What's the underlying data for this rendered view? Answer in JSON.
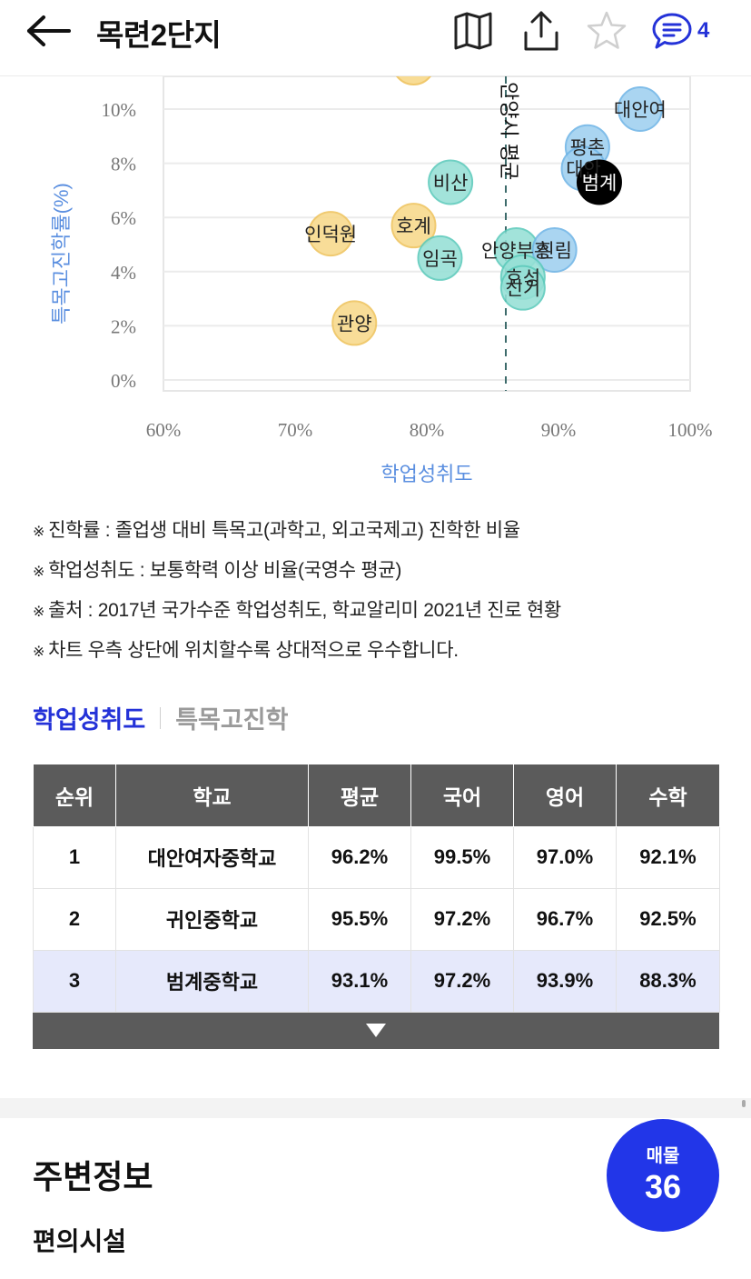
{
  "header": {
    "title": "목련2단지",
    "comment_count": "4",
    "icons": [
      "back-arrow-icon",
      "map-icon",
      "share-icon",
      "star-icon",
      "chat-icon"
    ]
  },
  "chart_data": {
    "type": "scatter",
    "xlabel": "학업성취도",
    "ylabel": "특목고진학률(%)",
    "x_ticks": [
      "60%",
      "70%",
      "80%",
      "90%",
      "100%"
    ],
    "y_ticks": [
      "0%",
      "2%",
      "4%",
      "6%",
      "8%",
      "10%"
    ],
    "xlim": [
      60,
      100
    ],
    "ylim": [
      0,
      10.5
    ],
    "reference_line": {
      "x": 86,
      "label": "안양시 평균",
      "style": "dashed"
    },
    "points": [
      {
        "name": "대안여",
        "x": 96.2,
        "y": 10.0,
        "color": "#9fd0f0"
      },
      {
        "name": "평촌",
        "x": 92.2,
        "y": 8.6,
        "color": "#9fd0f0"
      },
      {
        "name": "대안",
        "x": 91.9,
        "y": 7.8,
        "color": "#9fd0f0"
      },
      {
        "name": "범계",
        "x": 93.1,
        "y": 7.3,
        "color": "#000000",
        "highlight": true
      },
      {
        "name": "비산",
        "x": 81.8,
        "y": 7.3,
        "color": "#96e0d6"
      },
      {
        "name": "호계",
        "x": 79.0,
        "y": 5.7,
        "color": "#f8d98a"
      },
      {
        "name": "인덕원",
        "x": 72.7,
        "y": 5.4,
        "color": "#f8d98a"
      },
      {
        "name": "임곡",
        "x": 81.0,
        "y": 4.5,
        "color": "#96e0d6"
      },
      {
        "name": "안양부흥",
        "x": 86.8,
        "y": 4.8,
        "color": "#96e0d6"
      },
      {
        "name": "신림",
        "x": 89.7,
        "y": 4.8,
        "color": "#9fd0f0"
      },
      {
        "name": "호성",
        "x": 87.3,
        "y": 3.8,
        "color": "#96e0d6"
      },
      {
        "name": "신기",
        "x": 87.3,
        "y": 3.4,
        "color": "#96e0d6"
      },
      {
        "name": "관양",
        "x": 74.5,
        "y": 2.1,
        "color": "#f8d98a"
      }
    ]
  },
  "notes": {
    "mark": "※",
    "items": [
      "진학률 : 졸업생 대비 특목고(과학고, 외고국제고) 진학한 비율",
      "학업성취도 : 보통학력 이상 비율(국영수 평균)",
      "출처 : 2017년 국가수준 학업성취도, 학교알리미 2021년 진로 현황",
      "차트 우측 상단에 위치할수록 상대적으로 우수합니다."
    ]
  },
  "tabs": {
    "active": "학업성취도",
    "inactive": "특목고진학"
  },
  "table": {
    "headers": [
      "순위",
      "학교",
      "평균",
      "국어",
      "영어",
      "수학"
    ],
    "rows": [
      {
        "rank": "1",
        "school": "대안여자중학교",
        "avg": "96.2%",
        "kor": "99.5%",
        "eng": "97.0%",
        "math": "92.1%"
      },
      {
        "rank": "2",
        "school": "귀인중학교",
        "avg": "95.5%",
        "kor": "97.2%",
        "eng": "96.7%",
        "math": "92.5%"
      },
      {
        "rank": "3",
        "school": "범계중학교",
        "avg": "93.1%",
        "kor": "97.2%",
        "eng": "93.9%",
        "math": "88.3%",
        "highlight": true
      }
    ]
  },
  "nearby": {
    "title": "주변정보",
    "subtitle": "편의시설"
  },
  "listing_fab": {
    "label": "매물",
    "count": "36"
  }
}
